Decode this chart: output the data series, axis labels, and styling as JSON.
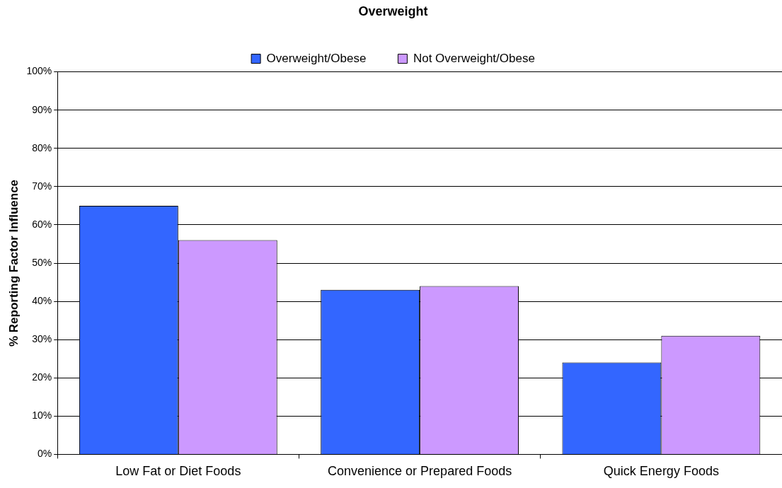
{
  "chart_data": {
    "type": "bar",
    "title": "Overweight",
    "ylabel": "% Reporting Factor Influence",
    "categories": [
      "Low Fat or Diet Foods",
      "Convenience or Prepared Foods",
      "Quick Energy Foods"
    ],
    "series": [
      {
        "name": "Overweight/Obese",
        "color": "#3366ff",
        "values": [
          65,
          43,
          24
        ]
      },
      {
        "name": "Not Overweight/Obese",
        "color": "#cc99ff",
        "values": [
          56,
          44,
          31
        ]
      }
    ],
    "ylim": [
      0,
      100
    ],
    "yticks": [
      {
        "value": 0,
        "label": "0%"
      },
      {
        "value": 10,
        "label": "10%"
      },
      {
        "value": 20,
        "label": "20%"
      },
      {
        "value": 30,
        "label": "30%"
      },
      {
        "value": 40,
        "label": "40%"
      },
      {
        "value": 50,
        "label": "50%"
      },
      {
        "value": 60,
        "label": "60%"
      },
      {
        "value": 70,
        "label": "70%"
      },
      {
        "value": 80,
        "label": "80%"
      },
      {
        "value": 90,
        "label": "90%"
      },
      {
        "value": 100,
        "label": "100%"
      }
    ],
    "grid": "y",
    "legend": "top"
  }
}
